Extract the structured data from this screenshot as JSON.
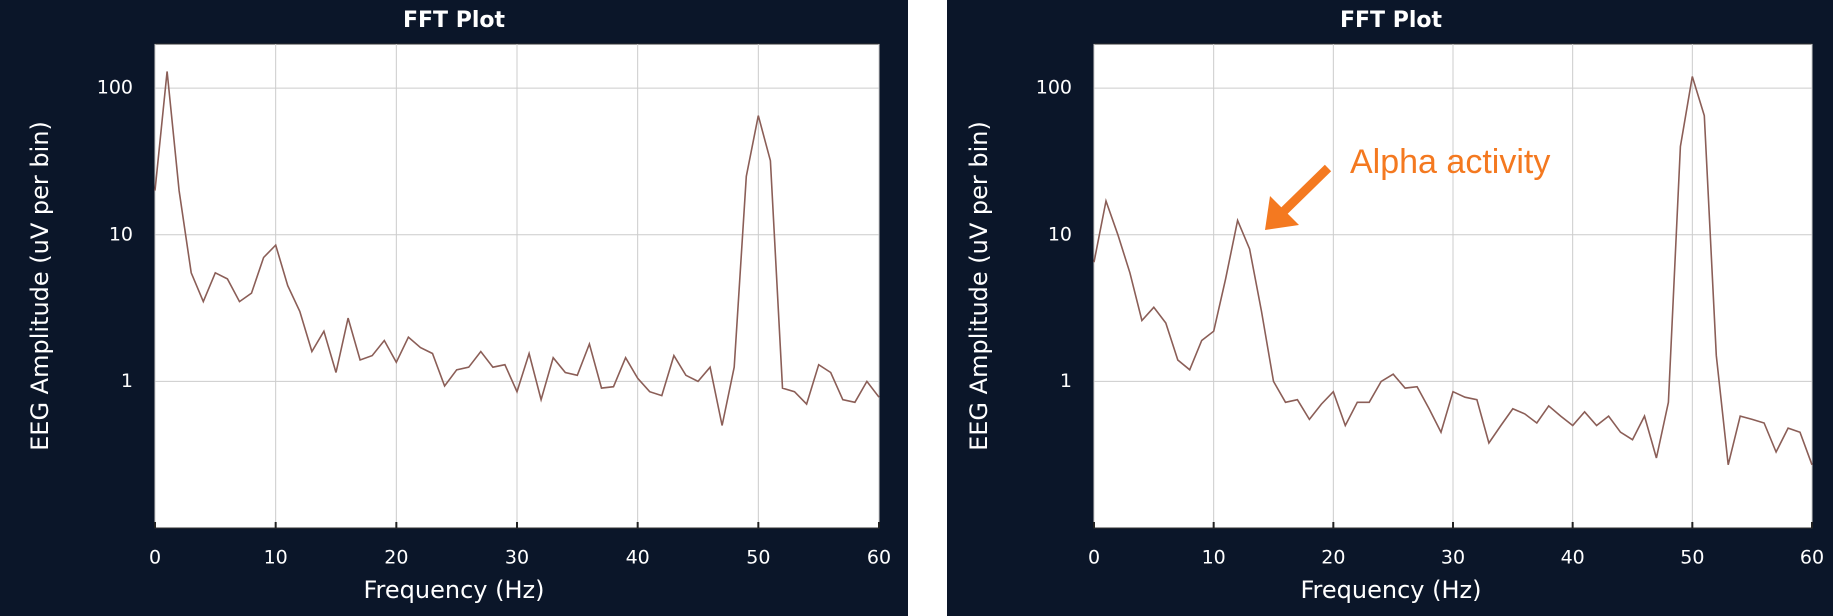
{
  "chart_data": [
    {
      "type": "line",
      "title": "FFT Plot",
      "xlabel": "Frequency (Hz)",
      "ylabel": "EEG Amplitude (uV per bin)",
      "x": [
        0,
        1,
        2,
        3,
        4,
        5,
        6,
        7,
        8,
        9,
        10,
        11,
        12,
        13,
        14,
        15,
        16,
        17,
        18,
        19,
        20,
        21,
        22,
        23,
        24,
        25,
        26,
        27,
        28,
        29,
        30,
        31,
        32,
        33,
        34,
        35,
        36,
        37,
        38,
        39,
        40,
        41,
        42,
        43,
        44,
        45,
        46,
        47,
        48,
        49,
        50,
        51,
        52,
        53,
        54,
        55,
        56,
        57,
        58,
        59,
        60
      ],
      "values": [
        20,
        130,
        20,
        5.5,
        3.5,
        5.5,
        5,
        3.5,
        4,
        7,
        8.5,
        4.5,
        3,
        1.6,
        2.2,
        1.15,
        2.7,
        1.4,
        1.5,
        1.9,
        1.35,
        2.0,
        1.7,
        1.55,
        0.93,
        1.2,
        1.25,
        1.6,
        1.25,
        1.3,
        0.85,
        1.55,
        0.75,
        1.45,
        1.15,
        1.1,
        1.8,
        0.9,
        0.92,
        1.45,
        1.05,
        0.85,
        0.8,
        1.5,
        1.1,
        1.0,
        1.25,
        0.5,
        1.25,
        25,
        65,
        32,
        0.9,
        0.85,
        0.7,
        1.3,
        1.15,
        0.75,
        0.72,
        1.0,
        0.78
      ],
      "color": "#8b5e57",
      "log_scale": true,
      "grid": true,
      "xlim": [
        0,
        60
      ],
      "xticks": [
        0,
        10,
        20,
        30,
        40,
        50,
        60
      ],
      "ylim": [
        0.1,
        200
      ],
      "yticks": [
        1,
        10,
        100
      ]
    },
    {
      "type": "line",
      "title": "FFT Plot",
      "xlabel": "Frequency (Hz)",
      "ylabel": "EEG Amplitude (uV per bin)",
      "x": [
        0,
        1,
        2,
        3,
        4,
        5,
        6,
        7,
        8,
        9,
        10,
        11,
        12,
        13,
        14,
        15,
        16,
        17,
        18,
        19,
        20,
        21,
        22,
        23,
        24,
        25,
        26,
        27,
        28,
        29,
        30,
        31,
        32,
        33,
        34,
        35,
        36,
        37,
        38,
        39,
        40,
        41,
        42,
        43,
        44,
        45,
        46,
        47,
        48,
        49,
        50,
        51,
        52,
        53,
        54,
        55,
        56,
        57,
        58,
        59,
        60
      ],
      "values": [
        6.5,
        17,
        10,
        5.5,
        2.6,
        3.2,
        2.5,
        1.4,
        1.2,
        1.9,
        2.2,
        5,
        12.5,
        8,
        3,
        1.0,
        0.72,
        0.75,
        0.55,
        0.7,
        0.85,
        0.5,
        0.72,
        0.72,
        1.0,
        1.12,
        0.9,
        0.92,
        0.65,
        0.45,
        0.85,
        0.78,
        0.75,
        0.38,
        0.5,
        0.65,
        0.6,
        0.52,
        0.68,
        0.58,
        0.5,
        0.62,
        0.5,
        0.58,
        0.45,
        0.4,
        0.58,
        0.3,
        0.72,
        40,
        120,
        65,
        1.5,
        0.27,
        0.58,
        0.55,
        0.52,
        0.33,
        0.48,
        0.45,
        0.27
      ],
      "color": "#8b5e57",
      "log_scale": true,
      "grid": true,
      "xlim": [
        0,
        60
      ],
      "xticks": [
        0,
        10,
        20,
        30,
        40,
        50,
        60
      ],
      "ylim": [
        0.1,
        200
      ],
      "yticks": [
        1,
        10,
        100
      ],
      "annotations": [
        {
          "text": "Alpha activity"
        }
      ]
    }
  ]
}
